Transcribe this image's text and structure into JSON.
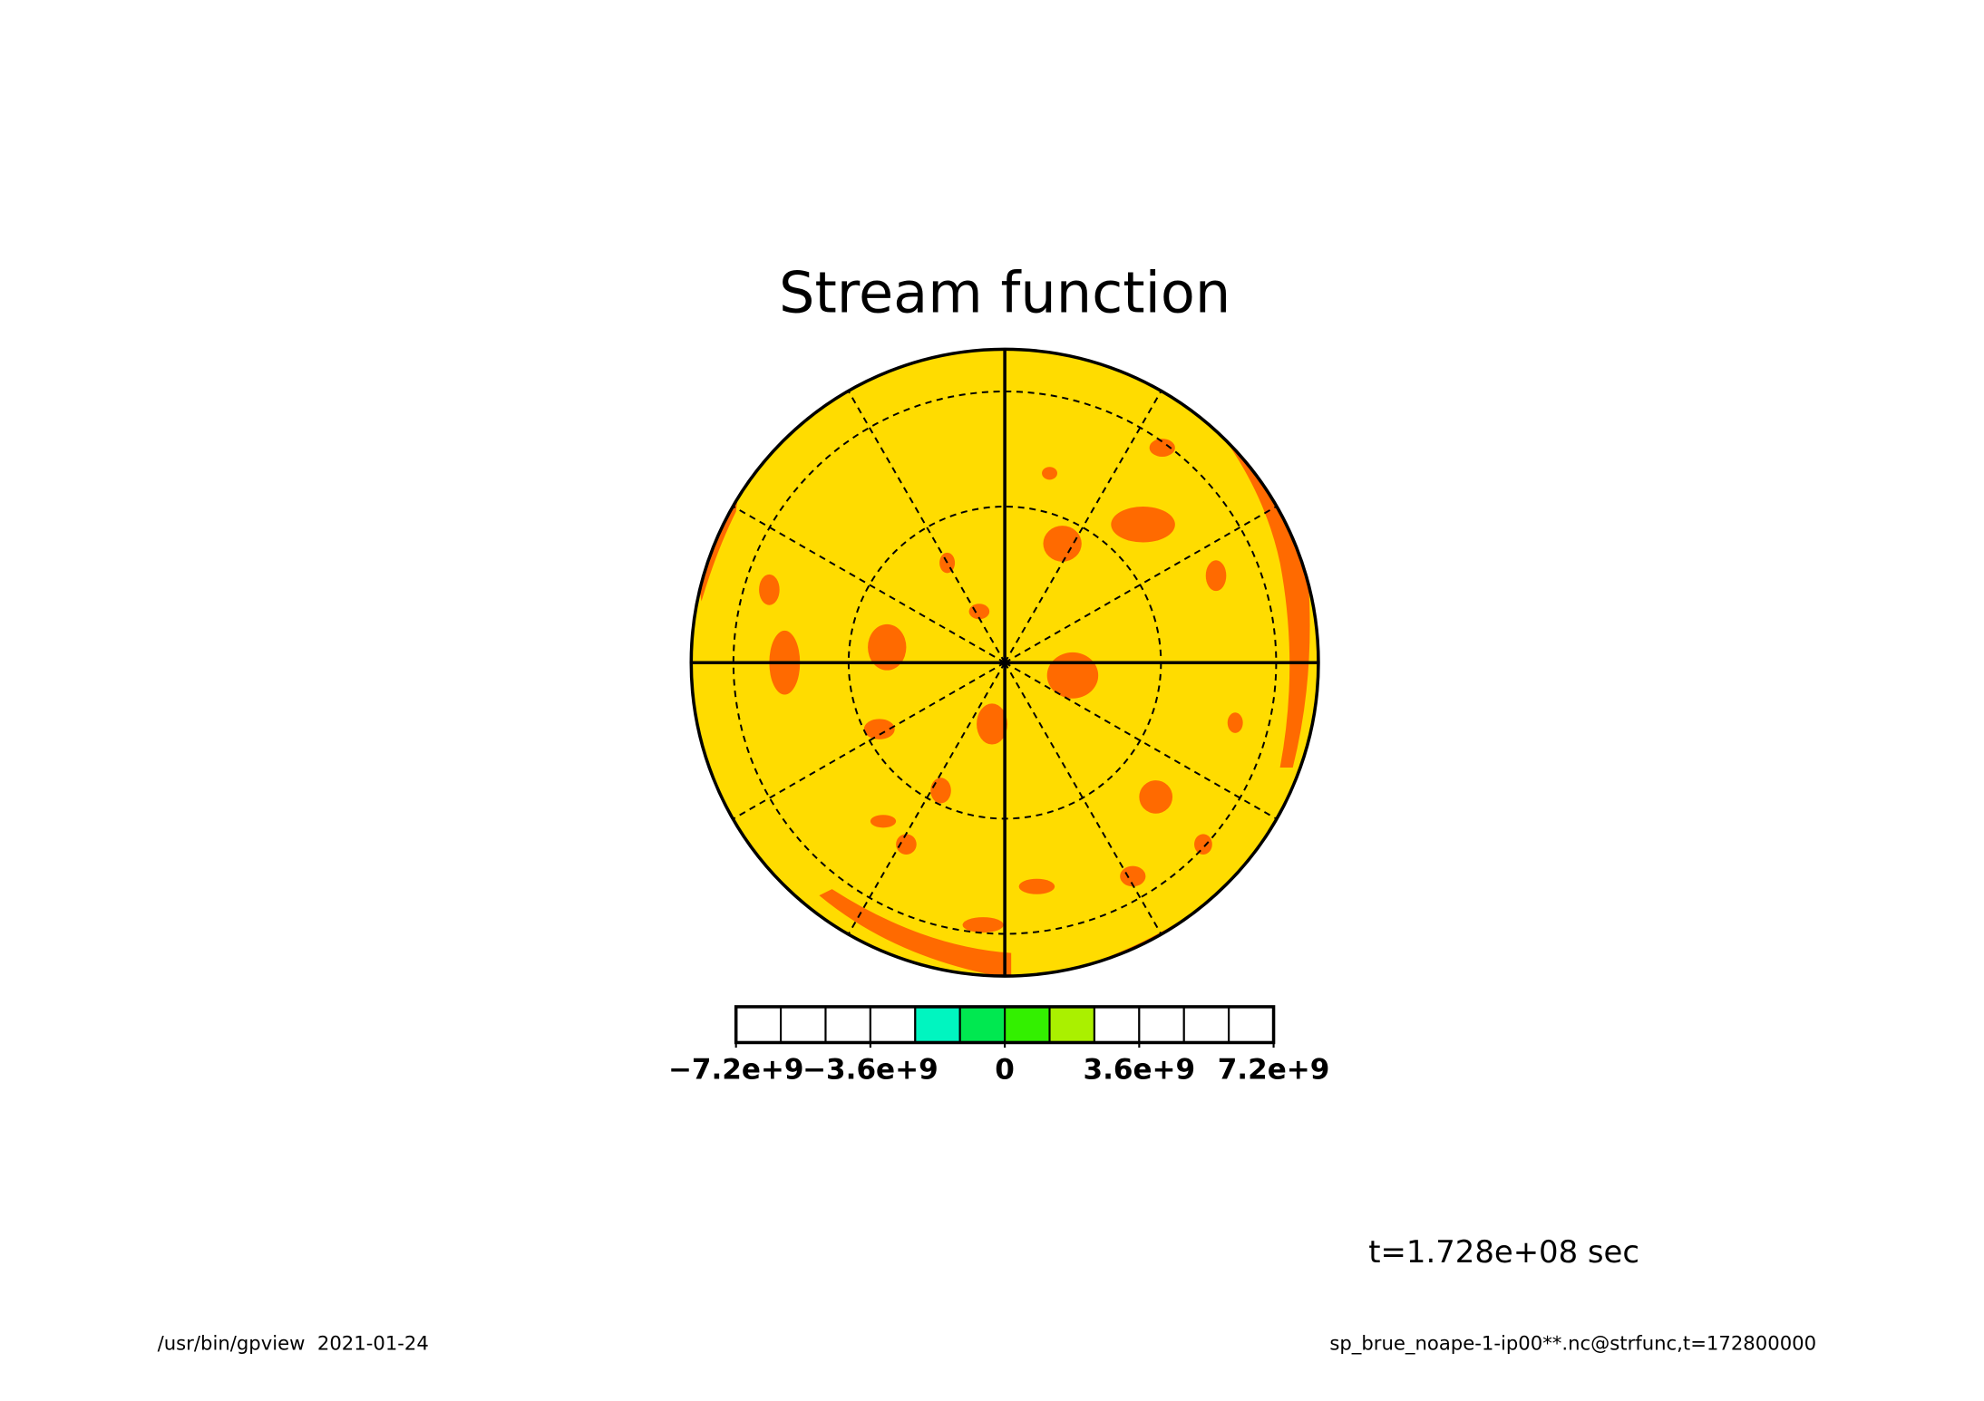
{
  "chart_data": {
    "type": "contour",
    "title": "Stream function",
    "colorbar": {
      "bins": [
        -7200000000,
        -6000000000,
        -4800000000,
        -3600000000,
        -2400000000,
        -1200000000,
        0,
        1200000000,
        2400000000,
        3600000000,
        4800000000,
        6000000000,
        7200000000
      ],
      "colors": [
        "#ffffff",
        "#ffffff",
        "#ffffff",
        "#ffffff",
        "#00f5c0",
        "#00e850",
        "#33f000",
        "#aaf000",
        "#ffffff",
        "#ffffff",
        "#ffffff",
        "#ffffff"
      ],
      "ticks": [
        {
          "value": -7200000000,
          "label": "−7.2e+9"
        },
        {
          "value": -3600000000,
          "label": "−3.6e+9"
        },
        0,
        {
          "value": 3600000000,
          "label": "3.6e+9"
        },
        {
          "value": 7200000000,
          "label": "7.2e+9"
        }
      ]
    },
    "annotation": "t=1.728e+08 sec"
  },
  "footer": {
    "left": "/usr/bin/gpview  2021-01-24",
    "right": "sp_brue_noape-1-ip00**.nc@strfunc,t=172800000"
  }
}
